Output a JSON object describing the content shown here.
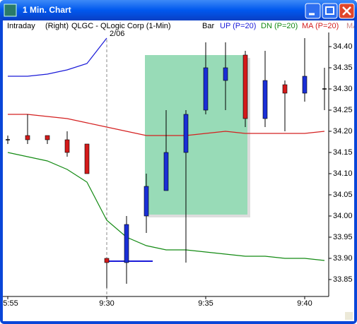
{
  "window": {
    "title": "1 Min. Chart"
  },
  "chart_data": {
    "type": "candlestick",
    "header": {
      "mode": "Intraday",
      "side": "(Right)",
      "symbol": "QLGC - QLogic Corp (1-Min)",
      "style": "Bar",
      "overflow": "MA"
    },
    "annotation": "2/06",
    "categories": [
      "5:55",
      null,
      null,
      null,
      null,
      "9:30",
      null,
      null,
      null,
      null,
      "9:35",
      null,
      null,
      null,
      null,
      "9:40",
      null
    ],
    "open": [
      34.18,
      34.19,
      34.19,
      34.18,
      34.17,
      33.9,
      33.89,
      34.0,
      34.06,
      34.15,
      34.25,
      34.32,
      34.38,
      34.23,
      34.31,
      34.29,
      34.3
    ],
    "high": [
      34.19,
      34.24,
      34.19,
      34.2,
      34.17,
      33.9,
      34.0,
      34.1,
      34.25,
      34.25,
      34.41,
      34.41,
      34.39,
      34.39,
      34.32,
      34.42,
      34.35
    ],
    "low": [
      34.17,
      34.17,
      34.17,
      34.14,
      34.1,
      33.83,
      33.84,
      33.96,
      34.06,
      33.89,
      34.24,
      34.25,
      34.21,
      34.21,
      34.2,
      34.27,
      34.25
    ],
    "close": [
      34.18,
      34.18,
      34.18,
      34.15,
      34.1,
      33.89,
      33.98,
      34.07,
      34.15,
      34.24,
      34.35,
      34.35,
      34.23,
      34.32,
      34.29,
      34.33,
      34.3
    ],
    "up_color": "#1a2fd6",
    "down_color": "#d41a1a",
    "flat_color": "#000000",
    "series": [
      {
        "name": "UP (P=20)",
        "color": "#1a1ad8",
        "values": [
          34.33,
          34.33,
          34.335,
          34.345,
          34.36,
          34.42,
          null,
          null,
          null,
          null,
          null,
          null,
          null,
          null,
          null,
          null,
          null
        ]
      },
      {
        "name": "DN (P=20)",
        "color": "#138a13",
        "values": [
          34.15,
          34.14,
          34.13,
          34.11,
          34.08,
          33.99,
          33.95,
          33.93,
          33.92,
          33.92,
          33.915,
          33.91,
          33.905,
          33.905,
          33.9,
          33.9,
          33.895
        ]
      },
      {
        "name": "MA (P=20)",
        "color": "#d42020",
        "values": [
          34.24,
          34.24,
          34.235,
          34.23,
          34.22,
          34.21,
          34.2,
          34.19,
          34.19,
          34.19,
          34.195,
          34.2,
          34.195,
          34.195,
          34.195,
          34.195,
          34.2
        ]
      }
    ],
    "ylim": [
      33.81,
      34.43
    ],
    "yticks": [
      {
        "value": 33.85,
        "label": "33.85"
      },
      {
        "value": 33.9,
        "label": "33.90"
      },
      {
        "value": 33.95,
        "label": "33.95"
      },
      {
        "value": 34,
        "label": "34.00"
      },
      {
        "value": 34.05,
        "label": "34.05"
      },
      {
        "value": 34.1,
        "label": "34.10"
      },
      {
        "value": 34.15,
        "label": "34.15"
      },
      {
        "value": 34.2,
        "label": "34.20"
      },
      {
        "value": 34.25,
        "label": "34.25"
      },
      {
        "value": 34.3,
        "label": "34.30"
      },
      {
        "value": 34.35,
        "label": "34.35"
      },
      {
        "value": 34.4,
        "label": "34.40"
      }
    ]
  }
}
